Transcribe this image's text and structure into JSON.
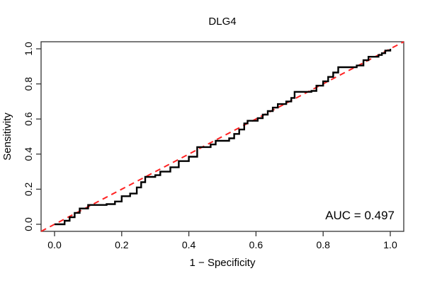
{
  "chart_data": {
    "type": "line",
    "title": "DLG4",
    "xlabel": "1 − Specificity",
    "ylabel": "Sensitivity",
    "xlim": [
      0.0,
      1.0
    ],
    "ylim": [
      0.0,
      1.0
    ],
    "x_ticks": [
      "0.0",
      "0.2",
      "0.4",
      "0.6",
      "0.8",
      "1.0"
    ],
    "y_ticks": [
      "0.0",
      "0.2",
      "0.4",
      "0.6",
      "0.8",
      "1.0"
    ],
    "grid": false,
    "legend": null,
    "annotation": {
      "auc_text": "AUC = 0.497"
    },
    "colors": {
      "roc_curve": "#000000",
      "diagonal": "#ff2222",
      "box": "#333333"
    },
    "series": [
      {
        "name": "ROC curve",
        "style": "step",
        "color": "#000000",
        "points": [
          [
            0.0,
            0.0
          ],
          [
            0.03,
            0.02
          ],
          [
            0.045,
            0.04
          ],
          [
            0.06,
            0.065
          ],
          [
            0.075,
            0.09
          ],
          [
            0.1,
            0.11
          ],
          [
            0.155,
            0.115
          ],
          [
            0.18,
            0.13
          ],
          [
            0.2,
            0.16
          ],
          [
            0.225,
            0.175
          ],
          [
            0.245,
            0.21
          ],
          [
            0.258,
            0.24
          ],
          [
            0.27,
            0.27
          ],
          [
            0.3,
            0.28
          ],
          [
            0.315,
            0.3
          ],
          [
            0.345,
            0.325
          ],
          [
            0.37,
            0.36
          ],
          [
            0.4,
            0.385
          ],
          [
            0.425,
            0.44
          ],
          [
            0.465,
            0.455
          ],
          [
            0.48,
            0.476
          ],
          [
            0.52,
            0.49
          ],
          [
            0.535,
            0.515
          ],
          [
            0.55,
            0.54
          ],
          [
            0.565,
            0.575
          ],
          [
            0.575,
            0.59
          ],
          [
            0.605,
            0.605
          ],
          [
            0.62,
            0.625
          ],
          [
            0.635,
            0.645
          ],
          [
            0.65,
            0.665
          ],
          [
            0.665,
            0.685
          ],
          [
            0.69,
            0.7
          ],
          [
            0.705,
            0.72
          ],
          [
            0.715,
            0.755
          ],
          [
            0.765,
            0.76
          ],
          [
            0.78,
            0.79
          ],
          [
            0.8,
            0.815
          ],
          [
            0.815,
            0.84
          ],
          [
            0.83,
            0.865
          ],
          [
            0.845,
            0.895
          ],
          [
            0.9,
            0.905
          ],
          [
            0.92,
            0.935
          ],
          [
            0.935,
            0.955
          ],
          [
            0.965,
            0.965
          ],
          [
            0.975,
            0.975
          ],
          [
            0.985,
            0.99
          ],
          [
            1.0,
            1.0
          ]
        ]
      },
      {
        "name": "chance diagonal",
        "style": "dashed",
        "color": "#ff2222",
        "points": [
          [
            0.0,
            0.0
          ],
          [
            1.0,
            1.0
          ]
        ]
      }
    ]
  }
}
